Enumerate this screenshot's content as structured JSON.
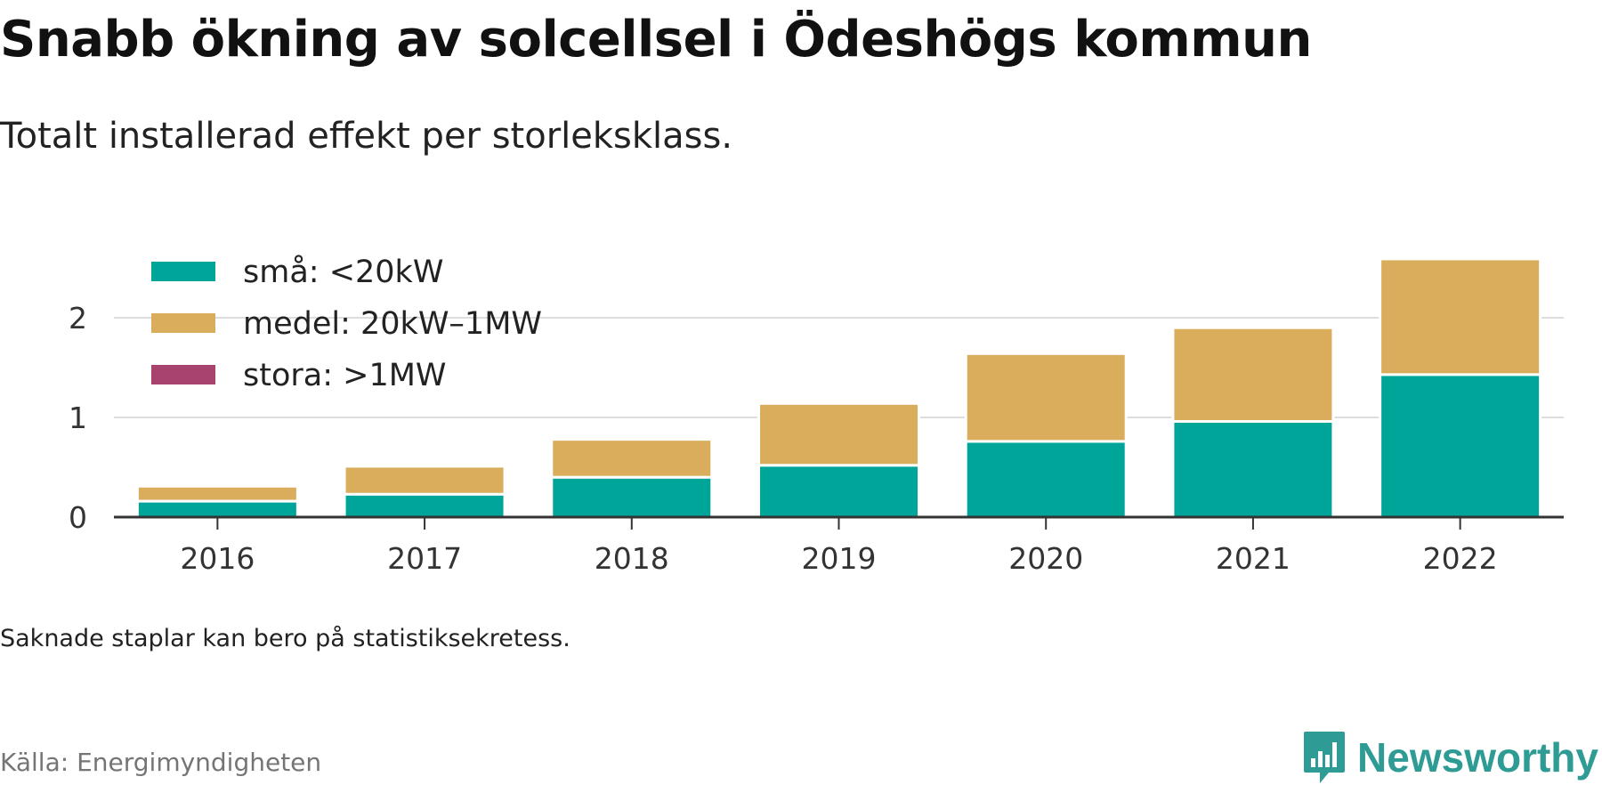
{
  "header": {
    "title": "Snabb ökning av solcellsel i Ödeshögs kommun",
    "subtitle": "Totalt installerad effekt per storleksklass."
  },
  "footer": {
    "note": "Saknade staplar kan bero på statistiksekretess.",
    "source": "Källa: Energimyndigheten",
    "brand": "Newsworthy"
  },
  "chart_data": {
    "type": "bar",
    "stacked": true,
    "title": "Snabb ökning av solcellsel i Ödeshögs kommun",
    "subtitle": "Totalt installerad effekt per storleksklass.",
    "xlabel": "",
    "ylabel": "",
    "categories": [
      "2016",
      "2017",
      "2018",
      "2019",
      "2020",
      "2021",
      "2022"
    ],
    "series": [
      {
        "name": "små: <20kW",
        "color": "#00a59a",
        "values": [
          0.16,
          0.23,
          0.4,
          0.52,
          0.76,
          0.96,
          1.43
        ]
      },
      {
        "name": "medel: 20kW–1MW",
        "color": "#d9ad5b",
        "values": [
          0.15,
          0.28,
          0.38,
          0.62,
          0.88,
          0.94,
          1.16
        ]
      },
      {
        "name": "stora: >1MW",
        "color": "#a8436d",
        "values": [
          0,
          0,
          0,
          0,
          0,
          0,
          0
        ]
      }
    ],
    "ylim": [
      0,
      2.6
    ],
    "yticks": [
      "0",
      "1",
      "2"
    ],
    "grid": true,
    "legend": "top-left"
  }
}
